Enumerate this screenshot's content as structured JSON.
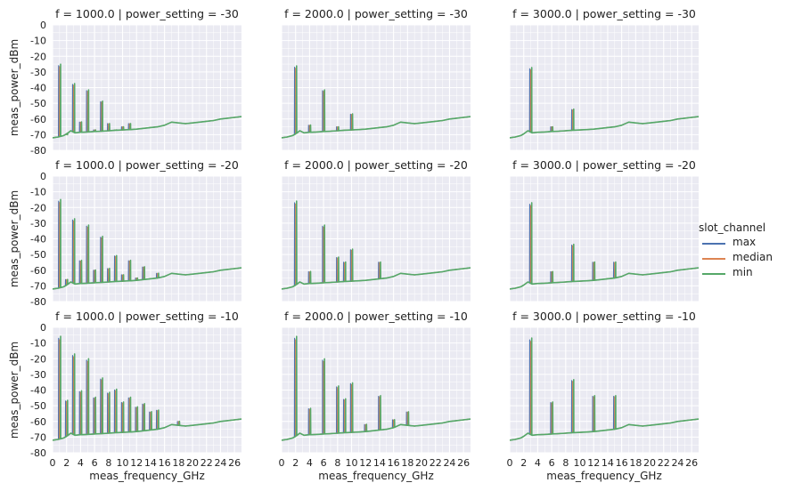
{
  "chart_data": {
    "type": "line",
    "legend": {
      "title": "slot_channel",
      "placement": "right",
      "entries": [
        {
          "name": "max",
          "color": "#4c72b0"
        },
        {
          "name": "median",
          "color": "#dd8452"
        },
        {
          "name": "min",
          "color": "#55a868"
        }
      ]
    },
    "xlabel": "meas_frequency_GHz",
    "ylabel": "meas_power_dBm",
    "xlim": [
      0,
      27
    ],
    "ylim": [
      -80,
      0
    ],
    "xticks": [
      0,
      2,
      4,
      6,
      8,
      10,
      12,
      14,
      16,
      18,
      20,
      22,
      24,
      26
    ],
    "yticks": [
      0,
      -10,
      -20,
      -30,
      -40,
      -50,
      -60,
      -70,
      -80
    ],
    "grid": true,
    "noise_floor": {
      "x": [
        0,
        0.8,
        1.6,
        2.0,
        2.6,
        3.2,
        4,
        5,
        6,
        7,
        8,
        9,
        10,
        11,
        12,
        13,
        14,
        15,
        16,
        17,
        18,
        19,
        20,
        21,
        22,
        23,
        24,
        25,
        26,
        27
      ],
      "y": [
        -72,
        -71.5,
        -70.5,
        -69.5,
        -67.5,
        -68.8,
        -68.5,
        -68.3,
        -68,
        -67.8,
        -67.5,
        -67.2,
        -67,
        -66.8,
        -66.5,
        -66,
        -65.5,
        -65,
        -64,
        -62,
        -62.5,
        -63,
        -62.5,
        -62,
        -61.5,
        -61,
        -60,
        -59.5,
        -59,
        -58.5
      ]
    },
    "panels": [
      {
        "title": "f = 1000.0 | power_setting = -30",
        "row": 0,
        "col": 0,
        "peaks": [
          [
            1,
            -26
          ],
          [
            2,
            -70
          ],
          [
            3,
            -38
          ],
          [
            4,
            -62
          ],
          [
            5,
            -42
          ],
          [
            6,
            -67
          ],
          [
            7,
            -49
          ],
          [
            8,
            -63
          ],
          [
            9,
            -67
          ],
          [
            10,
            -65
          ],
          [
            11,
            -63
          ]
        ]
      },
      {
        "title": "f = 2000.0 | power_setting = -30",
        "row": 0,
        "col": 1,
        "peaks": [
          [
            2,
            -27
          ],
          [
            4,
            -64
          ],
          [
            6,
            -42
          ],
          [
            8,
            -65
          ],
          [
            10,
            -57
          ]
        ]
      },
      {
        "title": "f = 3000.0 | power_setting = -30",
        "row": 0,
        "col": 2,
        "peaks": [
          [
            3,
            -28
          ],
          [
            6,
            -65
          ],
          [
            9,
            -54
          ]
        ]
      },
      {
        "title": "f = 1000.0 | power_setting = -20",
        "row": 1,
        "col": 0,
        "peaks": [
          [
            1,
            -16
          ],
          [
            2,
            -66
          ],
          [
            3,
            -28
          ],
          [
            4,
            -54
          ],
          [
            5,
            -32
          ],
          [
            6,
            -60
          ],
          [
            7,
            -39
          ],
          [
            8,
            -59
          ],
          [
            9,
            -51
          ],
          [
            10,
            -63
          ],
          [
            11,
            -54
          ],
          [
            12,
            -65
          ],
          [
            13,
            -58
          ],
          [
            15,
            -62
          ]
        ]
      },
      {
        "title": "f = 2000.0 | power_setting = -20",
        "row": 1,
        "col": 1,
        "peaks": [
          [
            2,
            -17
          ],
          [
            4,
            -61
          ],
          [
            6,
            -32
          ],
          [
            8,
            -52
          ],
          [
            9,
            -55
          ],
          [
            10,
            -47
          ],
          [
            14,
            -55
          ]
        ]
      },
      {
        "title": "f = 3000.0 | power_setting = -20",
        "row": 1,
        "col": 2,
        "peaks": [
          [
            3,
            -18
          ],
          [
            6,
            -61
          ],
          [
            9,
            -44
          ],
          [
            12,
            -55
          ],
          [
            15,
            -55
          ]
        ]
      },
      {
        "title": "f = 1000.0 | power_setting = -10",
        "row": 2,
        "col": 0,
        "peaks": [
          [
            1,
            -7
          ],
          [
            2,
            -47
          ],
          [
            3,
            -18
          ],
          [
            4,
            -41
          ],
          [
            5,
            -21
          ],
          [
            6,
            -45
          ],
          [
            7,
            -33
          ],
          [
            8,
            -42
          ],
          [
            9,
            -40
          ],
          [
            10,
            -48
          ],
          [
            11,
            -45
          ],
          [
            12,
            -51
          ],
          [
            13,
            -49
          ],
          [
            14,
            -54
          ],
          [
            15,
            -53
          ],
          [
            18,
            -60
          ]
        ]
      },
      {
        "title": "f = 2000.0 | power_setting = -10",
        "row": 2,
        "col": 1,
        "peaks": [
          [
            2,
            -7
          ],
          [
            4,
            -52
          ],
          [
            6,
            -21
          ],
          [
            8,
            -38
          ],
          [
            9,
            -46
          ],
          [
            10,
            -36
          ],
          [
            12,
            -62
          ],
          [
            14,
            -44
          ],
          [
            16,
            -59
          ],
          [
            18,
            -54
          ]
        ]
      },
      {
        "title": "f = 3000.0 | power_setting = -10",
        "row": 2,
        "col": 2,
        "peaks": [
          [
            3,
            -8
          ],
          [
            6,
            -48
          ],
          [
            9,
            -34
          ],
          [
            12,
            -44
          ],
          [
            15,
            -44
          ]
        ]
      }
    ]
  }
}
